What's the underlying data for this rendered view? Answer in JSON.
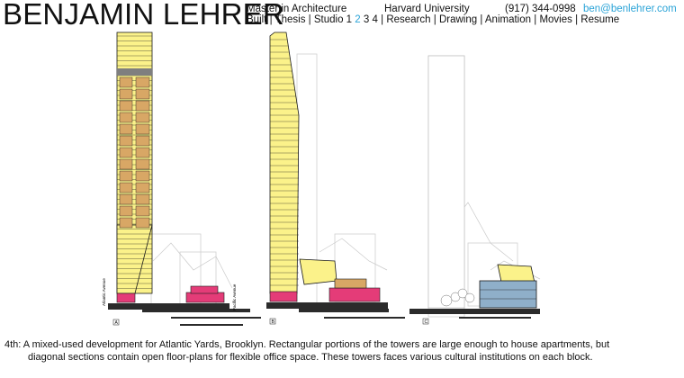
{
  "site": {
    "name": "BENJAMIN LEHRER",
    "degree": "Master in Architecture",
    "school": "Harvard University",
    "phone": "(917) 344-0998",
    "email": "ben@benlehrer.com"
  },
  "nav": {
    "built": "Built",
    "thesis": "Thesis",
    "studio": "Studio",
    "studio_1": "1",
    "studio_2": "2",
    "studio_3": "3",
    "studio_4": "4",
    "research": "Research",
    "drawing": "Drawing",
    "animation": "Animation",
    "movies": "Movies",
    "resume": "Resume",
    "separator": "|"
  },
  "drawing": {
    "street_label_1": "Atlantic Avenue",
    "street_label_2": "Pacific Avenue",
    "tower_a_label": "A",
    "tower_b_label": "B",
    "tower_c_label": "C",
    "colors": {
      "apartment_yellow": "#fbf28a",
      "office_tan": "#d8a765",
      "retail_pink": "#e43c78",
      "glass_blue": "#8fafc9",
      "ground_dark": "#2b2b2b",
      "outline": "#1a1a1a"
    }
  },
  "caption": {
    "line1": "4th:  A mixed-used development for Atlantic Yards, Brooklyn.  Rectangular portions of the towers are large enough to house apartments, but",
    "line2": "diagonal sections contain open floor-plans for flexible office space.  These towers faces various cultural institutions on each block."
  }
}
